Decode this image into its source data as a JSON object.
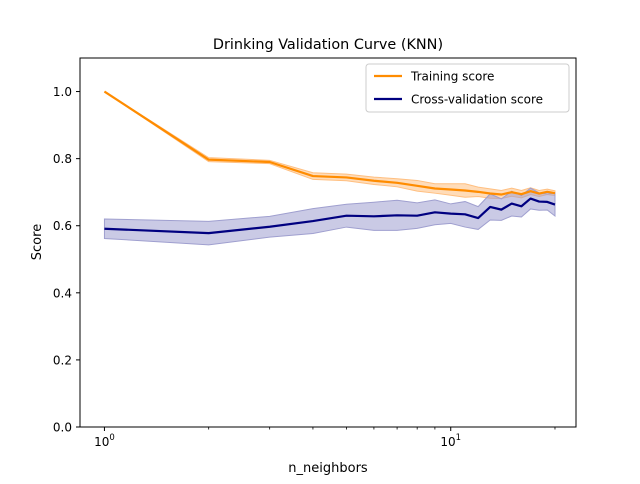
{
  "chart_data": {
    "type": "line",
    "title": "Drinking Validation Curve (KNN)",
    "xlabel": "n_neighbors",
    "ylabel": "Score",
    "xscale": "log",
    "xlim": [
      0.85,
      23
    ],
    "ylim": [
      0.0,
      1.1
    ],
    "x_ticks": [
      {
        "value": 1,
        "base": "10",
        "exp": "0"
      },
      {
        "value": 10,
        "base": "10",
        "exp": "1"
      }
    ],
    "y_ticks": [
      {
        "value": 0.0,
        "label": "0.0"
      },
      {
        "value": 0.2,
        "label": "0.2"
      },
      {
        "value": 0.4,
        "label": "0.4"
      },
      {
        "value": 0.6,
        "label": "0.6"
      },
      {
        "value": 0.8,
        "label": "0.8"
      },
      {
        "value": 1.0,
        "label": "1.0"
      }
    ],
    "grid": false,
    "legend_position": "top-right",
    "x": [
      1,
      2,
      3,
      4,
      5,
      6,
      7,
      8,
      9,
      10,
      11,
      12,
      13,
      14,
      15,
      16,
      17,
      18,
      19,
      20
    ],
    "series": [
      {
        "name": "Training score",
        "color": "#ff8c00",
        "band_color": "#ffbf80",
        "values": [
          1.0,
          0.797,
          0.79,
          0.748,
          0.744,
          0.734,
          0.728,
          0.719,
          0.711,
          0.708,
          0.705,
          0.701,
          0.696,
          0.693,
          0.7,
          0.694,
          0.703,
          0.696,
          0.701,
          0.697
        ],
        "upper": [
          1.0,
          0.803,
          0.795,
          0.758,
          0.754,
          0.745,
          0.74,
          0.735,
          0.725,
          0.725,
          0.725,
          0.715,
          0.71,
          0.705,
          0.712,
          0.705,
          0.713,
          0.705,
          0.709,
          0.704
        ],
        "lower": [
          1.0,
          0.791,
          0.785,
          0.738,
          0.734,
          0.723,
          0.716,
          0.703,
          0.697,
          0.691,
          0.685,
          0.687,
          0.682,
          0.681,
          0.688,
          0.683,
          0.693,
          0.687,
          0.693,
          0.69
        ]
      },
      {
        "name": "Cross-validation score",
        "color": "#000080",
        "band_color": "#9f9fcf",
        "values": [
          0.591,
          0.578,
          0.597,
          0.614,
          0.63,
          0.628,
          0.631,
          0.63,
          0.64,
          0.636,
          0.634,
          0.623,
          0.656,
          0.648,
          0.666,
          0.658,
          0.681,
          0.672,
          0.671,
          0.663
        ],
        "upper": [
          0.62,
          0.613,
          0.628,
          0.651,
          0.664,
          0.67,
          0.676,
          0.668,
          0.677,
          0.665,
          0.672,
          0.657,
          0.695,
          0.68,
          0.703,
          0.69,
          0.712,
          0.698,
          0.695,
          0.697
        ],
        "lower": [
          0.562,
          0.543,
          0.566,
          0.577,
          0.596,
          0.586,
          0.586,
          0.592,
          0.603,
          0.607,
          0.596,
          0.589,
          0.617,
          0.616,
          0.629,
          0.626,
          0.65,
          0.646,
          0.647,
          0.629
        ]
      }
    ]
  }
}
